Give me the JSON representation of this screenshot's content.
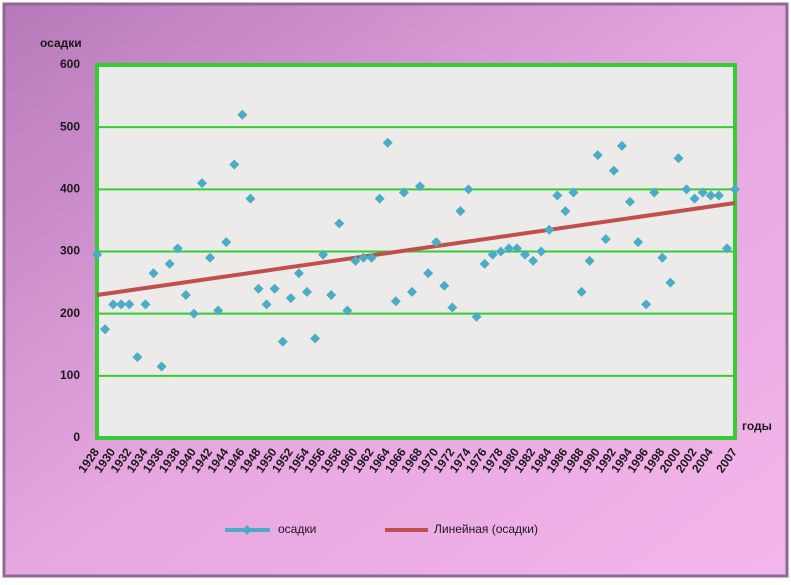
{
  "chart_data": {
    "type": "line",
    "y_label": "осадки",
    "x_label": "годы",
    "categories": [
      "1928",
      null,
      "1930",
      null,
      "1932",
      null,
      "1934",
      null,
      "1936",
      null,
      "1938",
      null,
      "1940",
      null,
      "1942",
      null,
      "1944",
      null,
      "1946",
      null,
      "1948",
      null,
      "1950",
      null,
      "1952",
      null,
      "1954",
      null,
      "1956",
      null,
      "1958",
      null,
      "1960",
      null,
      "1962",
      null,
      "1964",
      null,
      "1966",
      null,
      "1968",
      null,
      "1970",
      null,
      "1972",
      null,
      "1974",
      null,
      "1976",
      null,
      "1978",
      null,
      "1980",
      null,
      "1982",
      null,
      "1984",
      null,
      "1986",
      null,
      "1988",
      null,
      "1990",
      null,
      "1992",
      null,
      "1994",
      null,
      "1996",
      null,
      "1998",
      null,
      "2000",
      null,
      "2002",
      null,
      "2004",
      null,
      null,
      "2007"
    ],
    "series": [
      {
        "name": "осадки",
        "color": "#4bacc6",
        "values": [
          295,
          175,
          215,
          215,
          215,
          130,
          215,
          265,
          115,
          280,
          305,
          230,
          200,
          410,
          290,
          205,
          315,
          440,
          520,
          385,
          240,
          215,
          240,
          155,
          225,
          265,
          235,
          160,
          295,
          230,
          345,
          205,
          285,
          290,
          290,
          385,
          475,
          220,
          395,
          235,
          405,
          265,
          315,
          245,
          210,
          365,
          400,
          195,
          280,
          295,
          300,
          305,
          305,
          295,
          285,
          300,
          335,
          390,
          365,
          395,
          235,
          285,
          455,
          320,
          430,
          470,
          380,
          315,
          215,
          395,
          290,
          250,
          450,
          400,
          385,
          395,
          390,
          390,
          305,
          400
        ]
      }
    ],
    "trend": {
      "name": "Линейная (осадки)",
      "color": "#c0504d",
      "values": [
        230,
        378
      ]
    },
    "ylim": [
      0,
      600
    ],
    "yticks": [
      0,
      100,
      200,
      300,
      400,
      500,
      600
    ],
    "grid": true
  }
}
